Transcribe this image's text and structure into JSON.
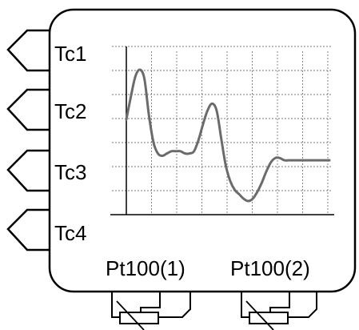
{
  "inputs": {
    "thermocouples": [
      "Tc1",
      "Tc2",
      "Tc3",
      "Tc4"
    ],
    "rtds": [
      "Pt100(1)",
      "Pt100(2)"
    ]
  },
  "colors": {
    "outline": "#000000",
    "trace": "#6b6b6b",
    "grid": "#7a7a7a",
    "background": "#ffffff"
  },
  "chart_data": {
    "type": "line",
    "title": "",
    "xlabel": "",
    "ylabel": "",
    "grid": true,
    "x": [
      0,
      0.2,
      0.4,
      0.6,
      0.8,
      1.0,
      1.2,
      1.4,
      1.6,
      1.8,
      2.0,
      2.2,
      2.4,
      2.6,
      2.8,
      3.0,
      3.2,
      3.4,
      3.6,
      3.8,
      4.0,
      4.2,
      4.4,
      4.6,
      4.8,
      5.0,
      5.2,
      5.4,
      5.6,
      5.8,
      6.0,
      6.2,
      6.4,
      6.6,
      6.8,
      7.0,
      7.2,
      7.4,
      7.6,
      7.8,
      8.0,
      8.2,
      8.4,
      8.6,
      8.8,
      9.0
    ],
    "series": [
      {
        "values": [
          4.2,
          5.2,
          6.1,
          6.4,
          6.0,
          4.4,
          3.2,
          2.7,
          2.6,
          2.7,
          2.8,
          2.8,
          2.8,
          2.7,
          2.7,
          2.8,
          3.3,
          4.0,
          4.6,
          4.9,
          4.6,
          3.4,
          2.2,
          1.5,
          1.1,
          0.9,
          0.7,
          0.6,
          0.7,
          1.0,
          1.4,
          1.9,
          2.3,
          2.5,
          2.5,
          2.4,
          2.4,
          2.4,
          2.4,
          2.4,
          2.4,
          2.4,
          2.4,
          2.4,
          2.4,
          2.4
        ]
      }
    ],
    "xlim": [
      0,
      9
    ],
    "ylim": [
      0,
      7
    ]
  }
}
